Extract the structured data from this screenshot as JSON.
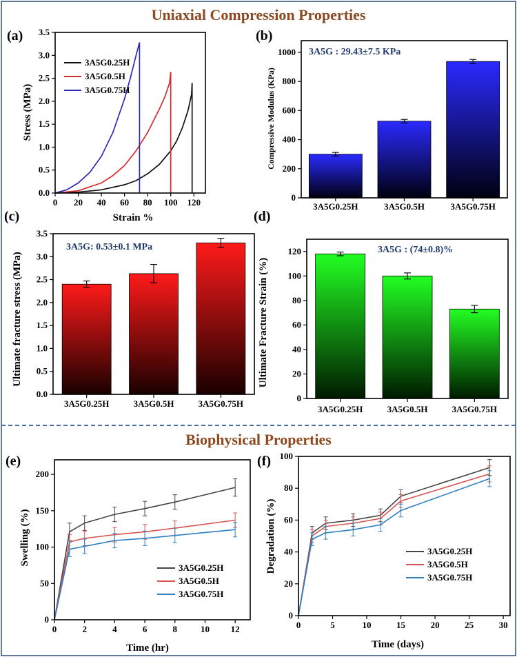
{
  "headers": {
    "top": "Uniaxial Compression Properties",
    "bottom": "Biophysical Properties"
  },
  "colors": {
    "header": "#8b4a22",
    "annotation": "#1f3a6e",
    "series_black": "#111111",
    "series_red": "#d42b2b",
    "series_blue": "#2a2ab8",
    "line_dark": "#444444",
    "line_red": "#d9534f",
    "line_blue": "#2e7fc1"
  },
  "chart_data": [
    {
      "id": "a",
      "panel_label": "(a)",
      "type": "line",
      "title": "",
      "xlabel": "Strain %",
      "ylabel": "Stress (MPa)",
      "xlim": [
        0,
        130
      ],
      "ylim": [
        0,
        3.5
      ],
      "xticks": [
        0,
        20,
        40,
        60,
        80,
        100,
        120
      ],
      "yticks": [
        0.0,
        0.5,
        1.0,
        1.5,
        2.0,
        2.5,
        3.0,
        3.5
      ],
      "ytick_labels": [
        "0.0",
        "0.5",
        "1.0",
        "1.5",
        "2.0",
        "2.5",
        "3.0",
        "3.5"
      ],
      "legend_position": "top-left",
      "series": [
        {
          "name": "3A5G0.25H",
          "color": "#111111",
          "x": [
            0,
            20,
            40,
            60,
            70,
            80,
            90,
            100,
            105,
            110,
            115,
            118,
            118.5,
            118.5
          ],
          "y": [
            0,
            0.02,
            0.07,
            0.18,
            0.27,
            0.42,
            0.62,
            0.92,
            1.13,
            1.42,
            1.8,
            2.15,
            2.4,
            0
          ]
        },
        {
          "name": "3A5G0.5H",
          "color": "#d42b2b",
          "x": [
            0,
            20,
            40,
            50,
            60,
            70,
            80,
            90,
            95,
            99,
            100,
            100
          ],
          "y": [
            0,
            0.05,
            0.22,
            0.38,
            0.6,
            0.92,
            1.32,
            1.82,
            2.1,
            2.4,
            2.64,
            0
          ]
        },
        {
          "name": "3A5G0.75H",
          "color": "#2a2ab8",
          "x": [
            0,
            10,
            20,
            30,
            40,
            50,
            60,
            65,
            70,
            72.5,
            73,
            73
          ],
          "y": [
            0,
            0.07,
            0.22,
            0.45,
            0.8,
            1.32,
            2.05,
            2.5,
            3.0,
            3.24,
            3.28,
            0
          ]
        }
      ]
    },
    {
      "id": "b",
      "panel_label": "(b)",
      "type": "bar",
      "title": "",
      "annotation": "3A5G : 29.43±7.5 KPa",
      "xlabel": "",
      "ylabel": "Compressive Modulus (KPa)",
      "ylim": [
        0,
        1080
      ],
      "yticks": [
        0,
        200,
        400,
        600,
        800,
        1000
      ],
      "categories": [
        "3A5G0.25H",
        "3A5G0.5H",
        "3A5G0.75H"
      ],
      "values": [
        300,
        527,
        937
      ],
      "errors": [
        12,
        12,
        14
      ],
      "gradient": [
        "#2a2aff",
        "#000010"
      ]
    },
    {
      "id": "c",
      "panel_label": "(c)",
      "type": "bar",
      "title": "",
      "annotation": "3A5G: 0.53±0.1 MPa",
      "xlabel": "",
      "ylabel": "Ultimate fracture stress (MPa)",
      "ylim": [
        0,
        3.5
      ],
      "yticks": [
        0.0,
        0.5,
        1.0,
        1.5,
        2.0,
        2.5,
        3.0,
        3.5
      ],
      "ytick_labels": [
        "0.0",
        "0.5",
        "1.0",
        "1.5",
        "2.0",
        "2.5",
        "3.0",
        "3.5"
      ],
      "categories": [
        "3A5G0.25H",
        "3A5G0.5H",
        "3A5G0.75H"
      ],
      "values": [
        2.4,
        2.63,
        3.3
      ],
      "errors": [
        0.07,
        0.2,
        0.1
      ],
      "gradient": [
        "#ff1a1a",
        "#1a0000"
      ]
    },
    {
      "id": "d",
      "panel_label": "(d)",
      "type": "bar",
      "title": "",
      "annotation": "3A5G : (74±0.8)%",
      "xlabel": "",
      "ylabel": "Ultimate Fracture Strain (%)",
      "ylim": [
        0,
        130
      ],
      "yticks": [
        0,
        20,
        40,
        60,
        80,
        100,
        120
      ],
      "categories": [
        "3A5G0.25H",
        "3A5G0.5H",
        "3A5G0.75H"
      ],
      "values": [
        118,
        100,
        73
      ],
      "errors": [
        1.5,
        2.5,
        3
      ],
      "gradient": [
        "#22ff22",
        "#001a00"
      ]
    },
    {
      "id": "e",
      "panel_label": "(e)",
      "type": "line",
      "title": "",
      "xlabel": "Time (hr)",
      "ylabel": "Swelling (%)",
      "xlim": [
        0,
        13
      ],
      "ylim": [
        0,
        220
      ],
      "xticks": [
        0,
        2,
        4,
        6,
        8,
        10,
        12
      ],
      "yticks": [
        0,
        50,
        100,
        150,
        200
      ],
      "legend_position": "lower-right",
      "x": [
        0,
        1,
        2,
        4,
        6,
        8,
        12
      ],
      "series": [
        {
          "name": "3A5G0.25H",
          "color": "#444444",
          "values": [
            0,
            121,
            133,
            145,
            153,
            162,
            182
          ],
          "errors": [
            0,
            12,
            10,
            10,
            10,
            10,
            12
          ]
        },
        {
          "name": "3A5G0.5H",
          "color": "#d9534f",
          "values": [
            0,
            107,
            112,
            117,
            121,
            126,
            137
          ],
          "errors": [
            0,
            10,
            10,
            10,
            10,
            10,
            10
          ]
        },
        {
          "name": "3A5G0.75H",
          "color": "#2e7fc1",
          "values": [
            0,
            97,
            101,
            109,
            112,
            116,
            124
          ],
          "errors": [
            0,
            10,
            10,
            10,
            10,
            10,
            10
          ]
        }
      ]
    },
    {
      "id": "f",
      "panel_label": "(f)",
      "type": "line",
      "title": "",
      "xlabel": "Time (days)",
      "ylabel": "Degradation (%)",
      "xlim": [
        0,
        31
      ],
      "ylim": [
        0,
        100
      ],
      "xticks": [
        0,
        5,
        10,
        15,
        20,
        25,
        30
      ],
      "yticks": [
        0,
        20,
        40,
        60,
        80,
        100
      ],
      "legend_position": "lower-right",
      "x": [
        0,
        2,
        4,
        8,
        12,
        15,
        28
      ],
      "series": [
        {
          "name": "3A5G0.25H",
          "color": "#444444",
          "values": [
            0,
            52,
            58,
            60,
            63,
            75,
            93
          ],
          "errors": [
            0,
            4,
            4,
            4,
            4,
            4,
            5
          ]
        },
        {
          "name": "3A5G0.5H",
          "color": "#d9534f",
          "values": [
            0,
            50,
            56,
            58,
            61,
            72,
            89
          ],
          "errors": [
            0,
            4,
            4,
            4,
            4,
            4,
            5
          ]
        },
        {
          "name": "3A5G0.75H",
          "color": "#2e7fc1",
          "values": [
            0,
            48,
            52,
            54,
            57,
            66,
            86
          ],
          "errors": [
            0,
            4,
            4,
            4,
            4,
            4,
            5
          ]
        }
      ]
    }
  ]
}
